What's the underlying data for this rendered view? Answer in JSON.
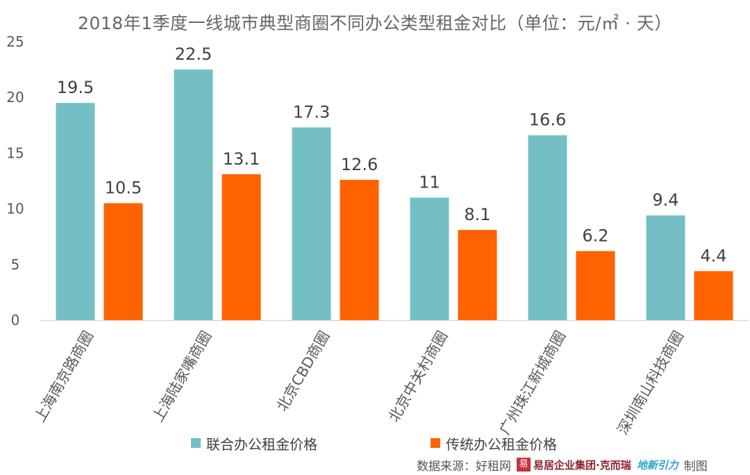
{
  "chart_data": {
    "type": "bar",
    "title": "2018年1季度一线城市典型商圈不同办公类型租金对比（单位：元/㎡ · 天）",
    "categories": [
      "上海南京路商圈",
      "上海陆家嘴商圈",
      "北京CBD商圈",
      "北京中关村商圈",
      "广州珠江新城商圈",
      "深圳南山科技商圈"
    ],
    "series": [
      {
        "name": "联合办公租金价格",
        "color": "#74bfc4",
        "values": [
          19.5,
          22.5,
          17.3,
          11,
          16.6,
          9.4
        ],
        "labels": [
          "19.5",
          "22.5",
          "17.3",
          "11",
          "16.6",
          "9.4"
        ]
      },
      {
        "name": "传统办公租金价格",
        "color": "#ff6200",
        "values": [
          10.5,
          13.1,
          12.6,
          8.1,
          6.2,
          4.4
        ],
        "labels": [
          "10.5",
          "13.1",
          "12.6",
          "8.1",
          "6.2",
          "4.4"
        ]
      }
    ],
    "ylim": [
      0,
      25
    ],
    "yticks": [
      0,
      5,
      10,
      15,
      20,
      25
    ],
    "grid": false,
    "legend": "bottom"
  },
  "source": {
    "prefix": "数据来源：好租网",
    "seal_text": "易",
    "brand": "易居企业集团·克而瑞",
    "logo2": "地新引力",
    "suffix": "制图"
  }
}
